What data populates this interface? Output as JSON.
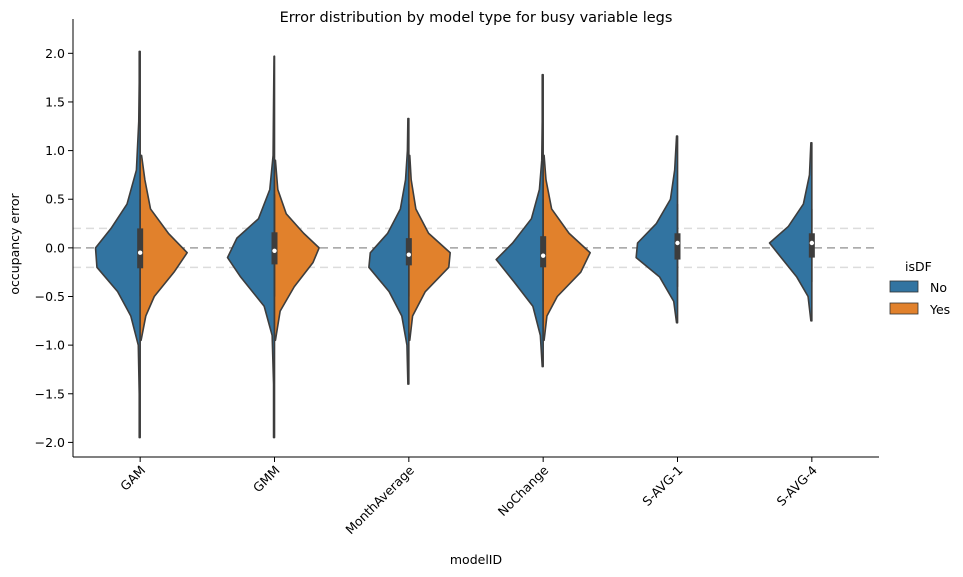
{
  "chart_data": {
    "type": "violin",
    "title": "Error distribution by model type for busy variable legs",
    "xlabel": "modelID",
    "ylabel": "occupancy error",
    "ylim": [
      -2.15,
      2.25
    ],
    "yticks": [
      2.0,
      1.5,
      1.0,
      0.5,
      0.0,
      -0.5,
      -1.0,
      -1.5,
      -2.0
    ],
    "ytick_labels": [
      "2.0",
      "1.5",
      "1.0",
      "0.5",
      "0.0",
      "−0.5",
      "−1.0",
      "−1.5",
      "−2.0"
    ],
    "categories": [
      "GAM",
      "GMM",
      "MonthAverage",
      "NoChange",
      "S-AVG-1",
      "S-AVG-4"
    ],
    "reference_lines": [
      {
        "y": 0.0,
        "style": "dashed",
        "color": "#a0a0a0"
      },
      {
        "y": 0.2,
        "style": "dashed",
        "color": "#dcdcdc"
      },
      {
        "y": -0.2,
        "style": "dashed",
        "color": "#dcdcdc"
      }
    ],
    "legend": {
      "title": "isDF",
      "placement": "right",
      "entries": [
        {
          "label": "No",
          "color": "#3274a1"
        },
        {
          "label": "Yes",
          "color": "#e1812c"
        }
      ]
    },
    "violins": [
      {
        "model": "GAM",
        "box": {
          "q1": -0.21,
          "median": -0.05,
          "q3": 0.2,
          "whisker_low": -0.5,
          "whisker_high": 0.5
        },
        "No": {
          "profile": [
            [
              -1.95,
              0.02
            ],
            [
              -1.5,
              0.02
            ],
            [
              -1.0,
              0.04
            ],
            [
              -0.7,
              0.2
            ],
            [
              -0.45,
              0.48
            ],
            [
              -0.2,
              0.92
            ],
            [
              0.0,
              0.95
            ],
            [
              0.2,
              0.62
            ],
            [
              0.45,
              0.28
            ],
            [
              0.8,
              0.08
            ],
            [
              1.3,
              0.03
            ],
            [
              1.7,
              0.02
            ],
            [
              2.02,
              0.02
            ]
          ]
        },
        "Yes": {
          "profile": [
            [
              -0.95,
              0.02
            ],
            [
              -0.7,
              0.12
            ],
            [
              -0.5,
              0.3
            ],
            [
              -0.25,
              0.72
            ],
            [
              -0.05,
              1.0
            ],
            [
              0.15,
              0.6
            ],
            [
              0.4,
              0.22
            ],
            [
              0.7,
              0.1
            ],
            [
              0.95,
              0.03
            ]
          ]
        }
      },
      {
        "model": "GMM",
        "box": {
          "q1": -0.17,
          "median": -0.03,
          "q3": 0.16,
          "whisker_low": -0.5,
          "whisker_high": 0.55
        },
        "No": {
          "profile": [
            [
              -1.95,
              0.02
            ],
            [
              -1.4,
              0.02
            ],
            [
              -0.9,
              0.05
            ],
            [
              -0.6,
              0.22
            ],
            [
              -0.3,
              0.72
            ],
            [
              -0.1,
              1.0
            ],
            [
              0.1,
              0.8
            ],
            [
              0.3,
              0.34
            ],
            [
              0.6,
              0.1
            ],
            [
              0.95,
              0.03
            ],
            [
              1.5,
              0.02
            ],
            [
              1.97,
              0.01
            ]
          ]
        },
        "Yes": {
          "profile": [
            [
              -0.95,
              0.02
            ],
            [
              -0.65,
              0.12
            ],
            [
              -0.4,
              0.42
            ],
            [
              -0.15,
              0.82
            ],
            [
              0.0,
              0.95
            ],
            [
              0.15,
              0.62
            ],
            [
              0.35,
              0.25
            ],
            [
              0.6,
              0.07
            ],
            [
              0.9,
              0.02
            ]
          ]
        }
      },
      {
        "model": "MonthAverage",
        "box": {
          "q1": -0.18,
          "median": -0.07,
          "q3": 0.1,
          "whisker_low": -0.5,
          "whisker_high": 0.45
        },
        "No": {
          "profile": [
            [
              -1.4,
              0.02
            ],
            [
              -1.0,
              0.04
            ],
            [
              -0.7,
              0.15
            ],
            [
              -0.45,
              0.42
            ],
            [
              -0.2,
              0.85
            ],
            [
              -0.05,
              0.82
            ],
            [
              0.15,
              0.45
            ],
            [
              0.4,
              0.18
            ],
            [
              0.7,
              0.07
            ],
            [
              1.0,
              0.03
            ],
            [
              1.33,
              0.02
            ]
          ]
        },
        "Yes": {
          "profile": [
            [
              -0.95,
              0.02
            ],
            [
              -0.7,
              0.08
            ],
            [
              -0.45,
              0.35
            ],
            [
              -0.2,
              0.85
            ],
            [
              -0.05,
              0.88
            ],
            [
              0.15,
              0.42
            ],
            [
              0.4,
              0.15
            ],
            [
              0.7,
              0.05
            ],
            [
              0.95,
              0.02
            ]
          ]
        }
      },
      {
        "model": "NoChange",
        "box": {
          "q1": -0.2,
          "median": -0.08,
          "q3": 0.12,
          "whisker_low": -0.55,
          "whisker_high": 0.5
        },
        "No": {
          "profile": [
            [
              -1.22,
              0.02
            ],
            [
              -0.9,
              0.06
            ],
            [
              -0.6,
              0.22
            ],
            [
              -0.35,
              0.62
            ],
            [
              -0.12,
              1.0
            ],
            [
              0.05,
              0.65
            ],
            [
              0.3,
              0.25
            ],
            [
              0.6,
              0.08
            ],
            [
              0.9,
              0.03
            ],
            [
              1.3,
              0.02
            ],
            [
              1.78,
              0.02
            ]
          ]
        },
        "Yes": {
          "profile": [
            [
              -0.95,
              0.02
            ],
            [
              -0.7,
              0.08
            ],
            [
              -0.5,
              0.3
            ],
            [
              -0.25,
              0.8
            ],
            [
              -0.05,
              1.0
            ],
            [
              0.15,
              0.55
            ],
            [
              0.4,
              0.18
            ],
            [
              0.7,
              0.06
            ],
            [
              0.95,
              0.02
            ]
          ]
        }
      },
      {
        "model": "S-AVG-1",
        "box": {
          "q1": -0.12,
          "median": 0.05,
          "q3": 0.15,
          "whisker_low": -0.4,
          "whisker_high": 0.45
        },
        "No": {
          "profile": [
            [
              -0.77,
              0.02
            ],
            [
              -0.55,
              0.08
            ],
            [
              -0.3,
              0.38
            ],
            [
              -0.1,
              0.88
            ],
            [
              0.05,
              0.85
            ],
            [
              0.25,
              0.45
            ],
            [
              0.5,
              0.15
            ],
            [
              0.8,
              0.06
            ],
            [
              1.15,
              0.02
            ]
          ]
        }
      },
      {
        "model": "S-AVG-4",
        "box": {
          "q1": -0.1,
          "median": 0.05,
          "q3": 0.15,
          "whisker_low": -0.35,
          "whisker_high": 0.4
        },
        "No": {
          "profile": [
            [
              -0.75,
              0.02
            ],
            [
              -0.5,
              0.08
            ],
            [
              -0.3,
              0.32
            ],
            [
              -0.12,
              0.62
            ],
            [
              0.05,
              0.9
            ],
            [
              0.22,
              0.5
            ],
            [
              0.45,
              0.18
            ],
            [
              0.75,
              0.05
            ],
            [
              1.08,
              0.02
            ]
          ]
        }
      }
    ]
  }
}
